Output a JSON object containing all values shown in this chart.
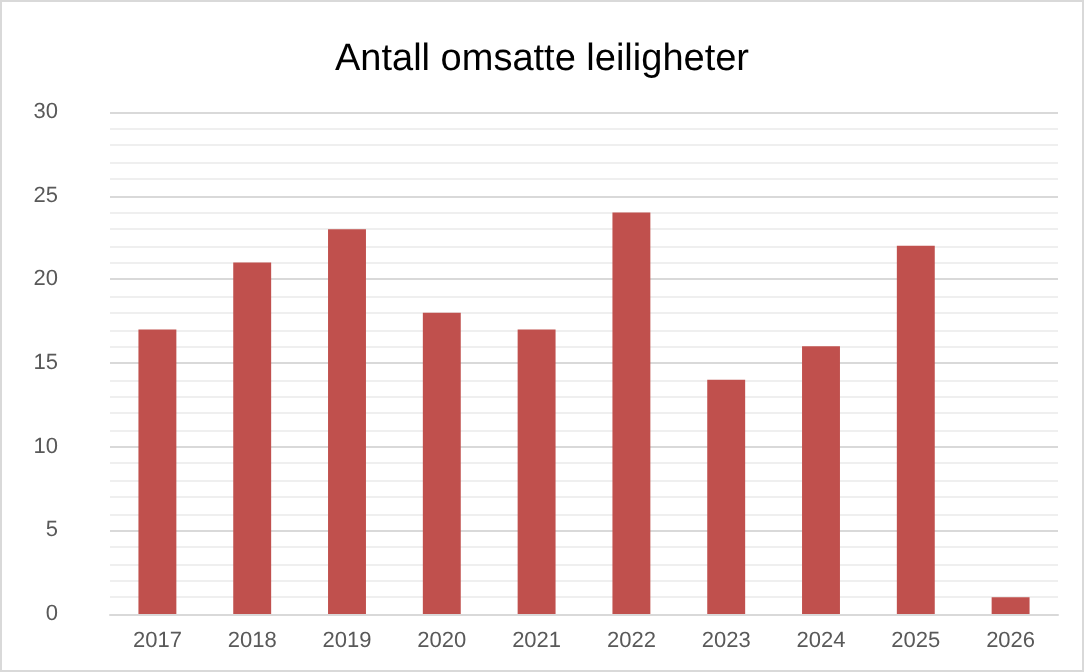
{
  "chart_data": {
    "type": "bar",
    "title": "Antall omsatte leiligheter",
    "categories": [
      "2017",
      "2018",
      "2019",
      "2020",
      "2021",
      "2022",
      "2023",
      "2024",
      "2025",
      "2026"
    ],
    "values": [
      17,
      21,
      23,
      18,
      17,
      24,
      14,
      16,
      22,
      1
    ],
    "color": "#c0504d",
    "ylim": [
      0,
      30
    ],
    "yticks": [
      0,
      5,
      10,
      15,
      20,
      25,
      30
    ],
    "grid": "y"
  }
}
